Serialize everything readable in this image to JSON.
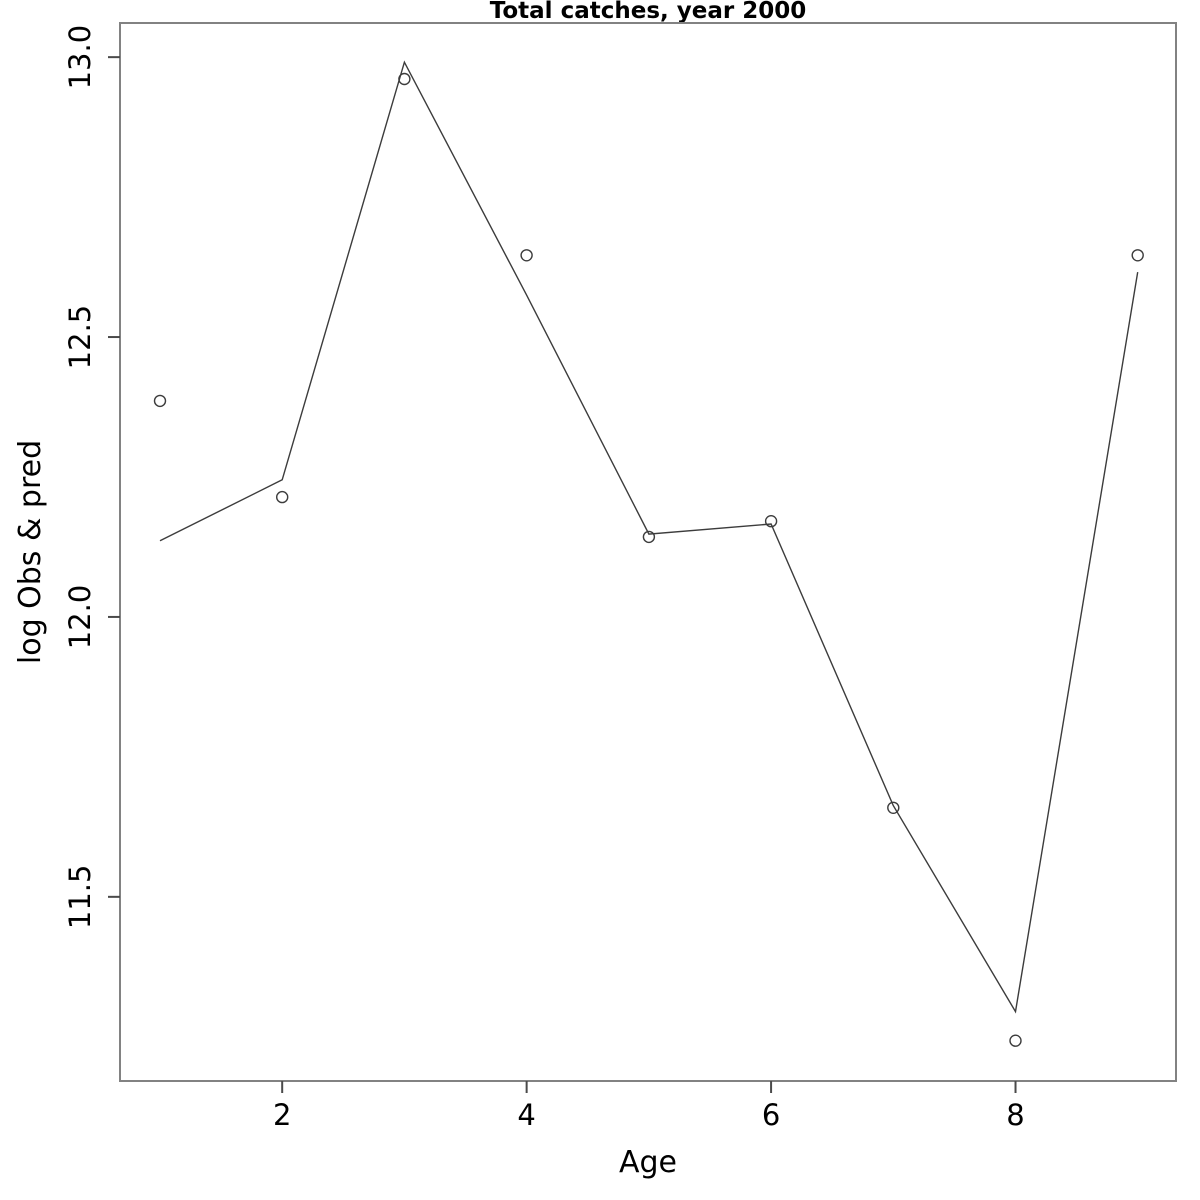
{
  "chart_data": {
    "type": "line",
    "title": "Total catches, year 2000",
    "xlabel": "Age",
    "ylabel": "log Obs & pred",
    "x": [
      1,
      2,
      3,
      4,
      5,
      6,
      7,
      8,
      9
    ],
    "series": [
      {
        "name": "observed",
        "style": "points",
        "marker": "open-circle",
        "values": [
          12.386,
          12.214,
          12.961,
          12.646,
          12.143,
          12.171,
          11.659,
          11.243,
          12.646
        ]
      },
      {
        "name": "predicted",
        "style": "line",
        "values": [
          12.136,
          12.245,
          12.991,
          12.575,
          12.148,
          12.166,
          11.663,
          11.295,
          12.616
        ]
      }
    ],
    "x_ticks": [
      {
        "value": 2,
        "label": "2"
      },
      {
        "value": 4,
        "label": "4"
      },
      {
        "value": 6,
        "label": "6"
      },
      {
        "value": 8,
        "label": "8"
      }
    ],
    "y_ticks": [
      {
        "value": 11.5,
        "label": "11.5"
      },
      {
        "value": 12.0,
        "label": "12.0"
      },
      {
        "value": 12.5,
        "label": "12.5"
      },
      {
        "value": 13.0,
        "label": "13.0"
      }
    ],
    "xlim": [
      0.673,
      9.313
    ],
    "ylim": [
      11.171,
      13.061
    ],
    "grid": false,
    "legend": null,
    "colors": {
      "background": "#ffffff",
      "box": "#828282",
      "data": "#3c3c3c",
      "text": "#000000"
    }
  }
}
